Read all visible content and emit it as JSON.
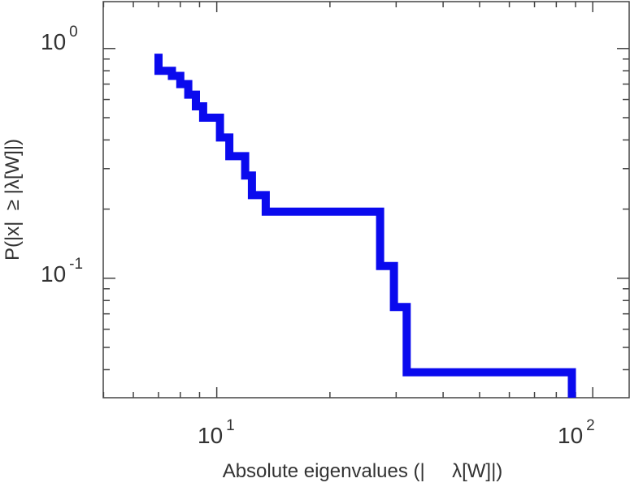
{
  "chart_data": {
    "type": "line",
    "step": true,
    "xlabel": "Absolute eigenvalues (|     λ[W]|)",
    "ylabel": "P(|x|  ≥ |λ[W]|)",
    "xscale": "log",
    "yscale": "log",
    "xlim": [
      4.99,
      125
    ],
    "ylim": [
      0.0302,
      1.6
    ],
    "grid": false,
    "x_ticks": [
      {
        "base": "10",
        "exp": "1",
        "value": 10
      },
      {
        "base": "10",
        "exp": "2",
        "value": 100
      }
    ],
    "y_ticks": [
      {
        "base": "10",
        "exp": "0",
        "value": 1
      },
      {
        "base": "10",
        "exp": "-1",
        "value": 0.1
      }
    ],
    "series": [
      {
        "color": "#0a0aee",
        "x": [
          7.0,
          7.0,
          7.0,
          7.6,
          7.6,
          8.0,
          8.0,
          8.4,
          8.4,
          8.8,
          8.8,
          9.2,
          9.2,
          10.2,
          10.2,
          10.8,
          10.8,
          11.9,
          11.9,
          12.4,
          12.4,
          13.5,
          13.5,
          27.2,
          27.2,
          29.6,
          29.6,
          32.0,
          32.0,
          88.0,
          88.0
        ],
        "y": [
          0.95,
          0.82,
          0.8,
          0.8,
          0.76,
          0.76,
          0.7,
          0.7,
          0.63,
          0.63,
          0.56,
          0.56,
          0.5,
          0.5,
          0.41,
          0.41,
          0.34,
          0.34,
          0.28,
          0.28,
          0.23,
          0.23,
          0.195,
          0.195,
          0.113,
          0.113,
          0.075,
          0.075,
          0.039,
          0.039,
          0.0302
        ]
      }
    ]
  }
}
